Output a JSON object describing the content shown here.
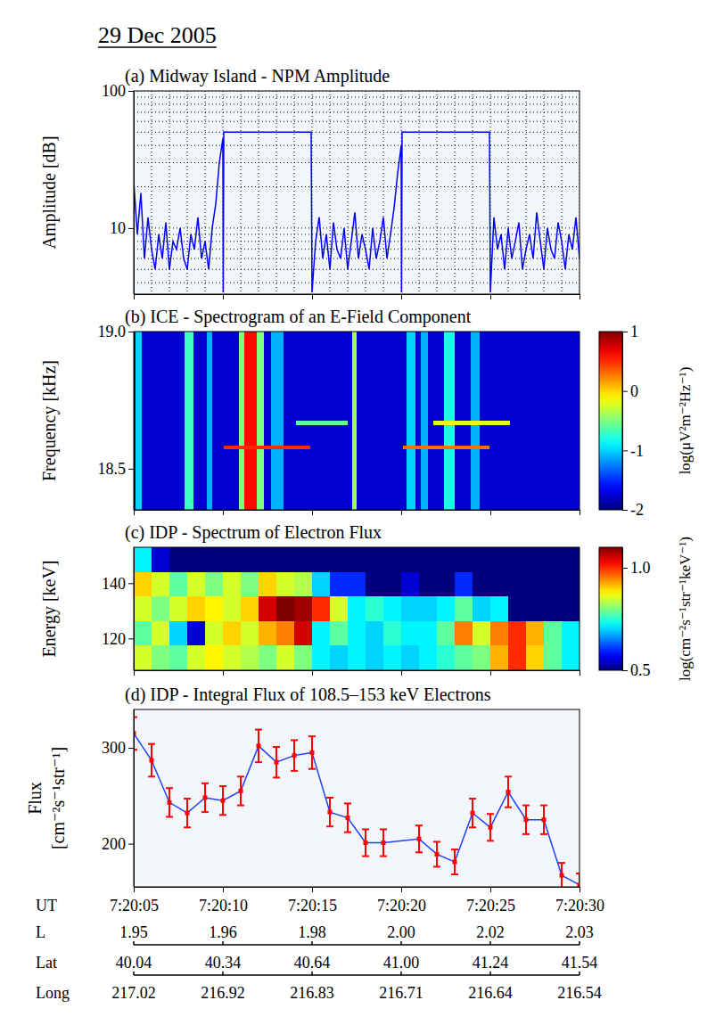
{
  "title": "29 Dec 2005",
  "chart_data": [
    {
      "type": "line",
      "title": "(a) Midway Island - NPM Amplitude",
      "ylabel": "Amplitude [dB]",
      "color": "#0000ff",
      "log": "y",
      "grid": true,
      "tick_labels": "y",
      "xlim": [
        5,
        30
      ],
      "xticks": [
        5,
        10,
        15,
        20,
        25,
        30
      ],
      "xminor": [
        5,
        6,
        7,
        8,
        9,
        10,
        11,
        12,
        13,
        14,
        15,
        16,
        17,
        18,
        19,
        20,
        21,
        22,
        23,
        24,
        25,
        26,
        27,
        28,
        29,
        30
      ],
      "ylim": [
        3.3,
        100
      ],
      "yticks": [
        10,
        100
      ],
      "yminor": [
        4,
        5,
        6,
        7,
        8,
        9,
        20,
        30,
        40,
        50,
        60,
        70,
        80,
        90
      ],
      "x": [
        5.0,
        5.2,
        5.4,
        5.6,
        5.8,
        6.0,
        6.2,
        6.4,
        6.6,
        6.8,
        7.0,
        7.2,
        7.4,
        7.6,
        7.8,
        8.0,
        8.2,
        8.4,
        8.6,
        8.8,
        9.0,
        9.2,
        9.4,
        9.6,
        9.8,
        10.0,
        10.02,
        10.05,
        14.95,
        15.0,
        15.2,
        15.4,
        15.6,
        15.8,
        16.0,
        16.2,
        16.4,
        16.6,
        16.8,
        17.0,
        17.2,
        17.4,
        17.6,
        17.8,
        18.0,
        18.2,
        18.4,
        18.6,
        18.8,
        19.0,
        19.2,
        19.4,
        19.6,
        19.8,
        20.0,
        20.02,
        20.05,
        24.95,
        25.0,
        25.2,
        25.4,
        25.6,
        25.8,
        26.0,
        26.2,
        26.4,
        26.6,
        26.8,
        27.0,
        27.2,
        27.4,
        27.6,
        27.8,
        28.0,
        28.2,
        28.4,
        28.6,
        28.8,
        29.0,
        29.2,
        29.4,
        29.6,
        29.8,
        30.0
      ],
      "values": [
        22,
        9,
        18,
        6,
        12,
        7,
        5,
        9,
        6,
        11,
        5,
        8,
        7,
        10,
        6,
        5,
        9,
        7,
        12,
        6,
        8,
        5,
        10,
        15,
        30,
        45,
        3.4,
        50,
        50,
        3.4,
        8,
        12,
        6,
        9,
        5,
        11,
        7,
        6,
        10,
        5,
        8,
        13,
        6,
        9,
        7,
        5,
        10,
        6,
        8,
        12,
        6,
        9,
        14,
        25,
        40,
        3.4,
        50,
        50,
        3.4,
        12,
        7,
        9,
        5,
        10,
        6,
        8,
        11,
        5,
        7,
        9,
        6,
        13,
        8,
        5,
        10,
        7,
        6,
        11,
        8,
        5,
        9,
        7,
        12,
        6
      ]
    },
    {
      "type": "heatmap",
      "title": "(b) ICE - Spectrogram of an E-Field Component",
      "ylabel": "Frequency [kHz]",
      "tick_labels": "y",
      "xlim": [
        5,
        30
      ],
      "xticks": [
        5,
        10,
        15,
        20,
        25,
        30
      ],
      "ylim": [
        18.35,
        19.0
      ],
      "yticks": [
        18.5,
        {
          "value": 19.0,
          "label": "19.0"
        }
      ],
      "cells": [
        {
          "x": [
            5,
            30
          ],
          "y": [
            18.35,
            19.0
          ],
          "value": -1.75
        },
        {
          "x": [
            5.1,
            5.45
          ],
          "y": [
            18.35,
            19.0
          ],
          "value": -1.0
        },
        {
          "x": [
            7.85,
            8.35
          ],
          "y": [
            18.35,
            19.0
          ],
          "value": -0.7
        },
        {
          "x": [
            9.1,
            9.4
          ],
          "y": [
            18.35,
            19.0
          ],
          "value": -1.1
        },
        {
          "x": [
            10.9,
            12.3
          ],
          "y": [
            18.35,
            19.0
          ],
          "value": -0.5
        },
        {
          "x": [
            11.2,
            11.9
          ],
          "y": [
            18.35,
            19.0
          ],
          "value": 0.6
        },
        {
          "x": [
            12.7,
            13.4
          ],
          "y": [
            18.35,
            19.0
          ],
          "value": -1.1
        },
        {
          "x": [
            17.25,
            17.5
          ],
          "y": [
            18.35,
            19.0
          ],
          "value": -0.4
        },
        {
          "x": [
            20.3,
            20.8
          ],
          "y": [
            18.35,
            19.0
          ],
          "value": -1.0
        },
        {
          "x": [
            21.1,
            21.5
          ],
          "y": [
            18.35,
            19.0
          ],
          "value": -1.1
        },
        {
          "x": [
            22.4,
            23.0
          ],
          "y": [
            18.35,
            19.0
          ],
          "value": -0.8
        },
        {
          "x": [
            23.9,
            24.4
          ],
          "y": [
            18.35,
            19.0
          ],
          "value": -1.1
        },
        {
          "x": [
            10.05,
            14.9
          ],
          "y": [
            18.57,
            18.585
          ],
          "value": 0.5
        },
        {
          "x": [
            14.1,
            17.0
          ],
          "y": [
            18.66,
            18.675
          ],
          "value": -0.6
        },
        {
          "x": [
            20.1,
            24.95
          ],
          "y": [
            18.57,
            18.585
          ],
          "value": 0.3
        },
        {
          "x": [
            21.8,
            26.1
          ],
          "y": [
            18.66,
            18.675
          ],
          "value": -0.2
        }
      ],
      "colorbar": {
        "range": [
          -2,
          1
        ],
        "ticks": [
          -2,
          -1,
          0,
          1
        ],
        "label": "log(μV²m⁻²Hz⁻¹)"
      }
    },
    {
      "type": "heatmap",
      "title": "(c) IDP - Spectrum of Electron Flux",
      "ylabel": "Energy [keV]",
      "tick_labels": "y",
      "xlim": [
        5,
        30
      ],
      "xticks": [
        5,
        10,
        15,
        20,
        25,
        30
      ],
      "ylim": [
        108.5,
        153
      ],
      "yticks": [
        120,
        140
      ],
      "x_edges": [
        5,
        6,
        7,
        8,
        9,
        10,
        11,
        12,
        13,
        14,
        15,
        16,
        17,
        18,
        19,
        20,
        21,
        22,
        23,
        24,
        25,
        26,
        27,
        28,
        29,
        30
      ],
      "y_edges": [
        108.5,
        117.4,
        126.3,
        135.2,
        144.1,
        153
      ],
      "cells": [
        [
          0.85,
          0.8,
          0.78,
          0.85,
          0.88,
          0.85,
          0.83,
          0.8,
          0.85,
          0.8,
          0.72,
          0.7,
          0.72,
          0.7,
          0.72,
          0.7,
          0.72,
          0.75,
          0.78,
          0.8,
          0.92,
          1.0,
          0.9,
          0.78,
          0.72
        ],
        [
          0.78,
          0.85,
          0.7,
          0.55,
          0.85,
          0.9,
          0.85,
          0.92,
          0.95,
          1.05,
          0.72,
          0.78,
          0.72,
          0.7,
          0.75,
          0.72,
          0.72,
          0.78,
          0.95,
          0.85,
          0.95,
          1.0,
          0.92,
          0.78,
          0.72
        ],
        [
          0.85,
          0.8,
          0.85,
          0.9,
          0.88,
          0.85,
          0.9,
          1.05,
          1.1,
          1.08,
          1.0,
          0.85,
          0.72,
          0.75,
          0.72,
          0.7,
          0.7,
          0.72,
          0.78,
          0.7,
          0.72,
          0.5,
          0.5,
          0.5,
          0.5
        ],
        [
          0.9,
          0.85,
          0.78,
          0.85,
          0.8,
          0.85,
          0.8,
          0.9,
          0.85,
          0.83,
          0.7,
          0.6,
          0.6,
          0.5,
          0.5,
          0.55,
          0.5,
          0.5,
          0.6,
          0.5,
          0.5,
          0.5,
          0.5,
          0.5,
          0.5
        ],
        [
          0.72,
          0.55,
          0.5,
          0.5,
          0.5,
          0.5,
          0.5,
          0.5,
          0.5,
          0.5,
          0.5,
          0.5,
          0.5,
          0.5,
          0.5,
          0.5,
          0.5,
          0.5,
          0.5,
          0.5,
          0.5,
          0.5,
          0.5,
          0.5,
          0.5
        ]
      ],
      "colorbar": {
        "range": [
          0.5,
          1.1
        ],
        "ticks": [
          0.5,
          {
            "value": 1.0,
            "label": "1.0"
          }
        ],
        "label": "log(cm⁻²s⁻¹str⁻¹keV⁻¹)"
      }
    },
    {
      "type": "line",
      "title": "(d) IDP - Integral Flux of 108.5–153 keV Electrons",
      "ylabel": [
        "Flux",
        "[cm⁻²s⁻¹str⁻¹]"
      ],
      "xlabel": "UT",
      "color": "#1f3fff",
      "tick_labels": true,
      "xlim": [
        5,
        30
      ],
      "xticks": [
        {
          "value": 5,
          "label": "7:20:05"
        },
        {
          "value": 10,
          "label": "7:20:10"
        },
        {
          "value": 15,
          "label": "7:20:15"
        },
        {
          "value": 20,
          "label": "7:20:20"
        },
        {
          "value": 25,
          "label": "7:20:25"
        },
        {
          "value": 30,
          "label": "7:20:30"
        }
      ],
      "ylim": [
        155,
        340
      ],
      "yticks": [
        200,
        300
      ],
      "x": [
        5,
        6,
        7,
        8,
        9,
        10,
        11,
        12,
        13,
        14,
        15,
        16,
        17,
        18,
        19,
        21,
        22,
        23,
        24,
        25,
        26,
        27,
        28,
        29,
        30
      ],
      "values": [
        315,
        287,
        243,
        232,
        248,
        245,
        255,
        302,
        285,
        292,
        295,
        233,
        227,
        201,
        201,
        205,
        189,
        181,
        232,
        217,
        254,
        225,
        225,
        167,
        157
      ],
      "errors": [
        17,
        17,
        15,
        15,
        15,
        15,
        15,
        17,
        16,
        16,
        17,
        15,
        15,
        14,
        14,
        14,
        13,
        13,
        15,
        14,
        16,
        15,
        15,
        13,
        12
      ]
    }
  ],
  "ephemeris": [
    {
      "name": "L",
      "ticks": [
        1.95,
        1.96,
        1.98,
        {
          "value": 2.0,
          "label": "2.00"
        },
        2.02,
        2.03
      ]
    },
    {
      "name": "Lat",
      "ticks": [
        40.04,
        40.34,
        40.64,
        {
          "value": 41.0,
          "label": "41.00"
        },
        41.24,
        41.54
      ]
    },
    {
      "name": "Long",
      "ticks": [
        217.02,
        216.92,
        216.83,
        216.71,
        216.64,
        216.54
      ]
    }
  ]
}
